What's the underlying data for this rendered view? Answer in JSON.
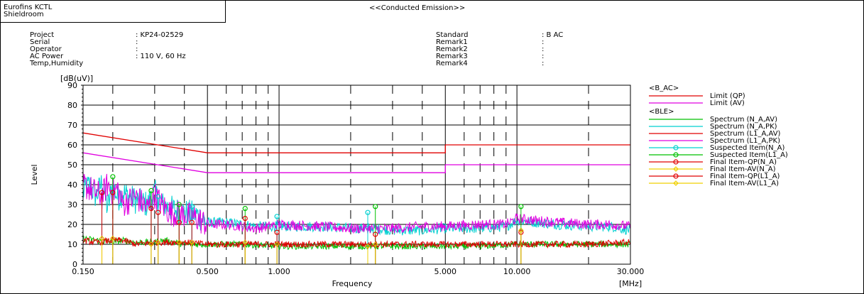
{
  "header": {
    "lab_line1": "Eurofins KCTL",
    "lab_line2": "Shieldroom",
    "title": "<<Conducted Emission>>"
  },
  "info_left": [
    {
      "label": "Project",
      "value": ": KP24-02529"
    },
    {
      "label": "Serial",
      "value": ":"
    },
    {
      "label": "Operator",
      "value": ":"
    },
    {
      "label": "AC Power",
      "value": ": 110 V, 60 Hz"
    },
    {
      "label": "Temp,Humidity",
      "value": ""
    }
  ],
  "info_right": [
    {
      "label": "Standard",
      "value": ": B AC"
    },
    {
      "label": "Remark1",
      "value": ":"
    },
    {
      "label": "Remark2",
      "value": ":"
    },
    {
      "label": "Remark3",
      "value": ":"
    },
    {
      "label": "Remark4",
      "value": ":"
    }
  ],
  "chart_data": {
    "type": "line",
    "ylabel": "Level",
    "yunit": "[dB(uV)]",
    "xlabel": "Frequency",
    "xunit": "[MHz]",
    "x_scale": "log",
    "xlim": [
      0.15,
      30
    ],
    "ylim": [
      0,
      90
    ],
    "y_ticks": [
      0,
      10,
      20,
      30,
      40,
      50,
      60,
      70,
      80,
      90
    ],
    "x_ticks": [
      {
        "value": 0.15,
        "label": "0.150"
      },
      {
        "value": 0.5,
        "label": "0.500"
      },
      {
        "value": 1,
        "label": "1.000"
      },
      {
        "value": 5,
        "label": "5.000"
      },
      {
        "value": 10,
        "label": "10.000"
      },
      {
        "value": 30,
        "label": "30.000"
      }
    ],
    "grid": true,
    "legend_position": "right",
    "legend_groups": [
      {
        "title": "<B_AC>",
        "items": [
          {
            "name": "Limit (QP)",
            "color": "#e00000",
            "marker": "none"
          },
          {
            "name": "Limit (AV)",
            "color": "#e000e0",
            "marker": "none"
          }
        ]
      },
      {
        "title": "<BLE>",
        "items": [
          {
            "name": "Spectrum (N_A,AV)",
            "color": "#00c000",
            "marker": "none"
          },
          {
            "name": "Spectrum (N_A,PK)",
            "color": "#00d0d0",
            "marker": "none"
          },
          {
            "name": "Spectrum (L1_A,AV)",
            "color": "#e00000",
            "marker": "none"
          },
          {
            "name": "Spectrum (L1_A,PK)",
            "color": "#e000e0",
            "marker": "none"
          },
          {
            "name": "Suspected Item(N_A)",
            "color": "#00d0d0",
            "marker": "circle"
          },
          {
            "name": "Suspected Item(L1_A)",
            "color": "#00c000",
            "marker": "circle"
          },
          {
            "name": "Final Item-QP(N_A)",
            "color": "#e00000",
            "marker": "circle"
          },
          {
            "name": "Final Item-AV(N_A)",
            "color": "#f0d000",
            "marker": "diamond"
          },
          {
            "name": "Final Item-QP(L1_A)",
            "color": "#e00000",
            "marker": "circle"
          },
          {
            "name": "Final Item-AV(L1_A)",
            "color": "#f0d000",
            "marker": "diamond"
          }
        ]
      }
    ],
    "limits": [
      {
        "name": "Limit (QP)",
        "color": "#e00000",
        "segments": [
          {
            "x": [
              0.15,
              0.5
            ],
            "y": [
              66,
              56
            ]
          },
          {
            "x": [
              0.5,
              5
            ],
            "y": [
              56,
              56
            ]
          },
          {
            "x": [
              5,
              30
            ],
            "y": [
              60,
              60
            ]
          }
        ]
      },
      {
        "name": "Limit (AV)",
        "color": "#e000e0",
        "segments": [
          {
            "x": [
              0.15,
              0.5
            ],
            "y": [
              56,
              46
            ]
          },
          {
            "x": [
              0.5,
              5
            ],
            "y": [
              46,
              46
            ]
          },
          {
            "x": [
              5,
              30
            ],
            "y": [
              50,
              50
            ]
          }
        ]
      }
    ],
    "spectra": [
      {
        "name": "Spectrum (N_A,PK)",
        "color": "#00d0d0",
        "x": [
          0.15,
          0.16,
          0.17,
          0.18,
          0.19,
          0.2,
          0.21,
          0.22,
          0.25,
          0.28,
          0.3,
          0.32,
          0.35,
          0.4,
          0.45,
          0.5,
          0.6,
          0.7,
          0.8,
          1.0,
          1.5,
          2.0,
          2.5,
          3.0,
          4.0,
          5.0,
          7.0,
          9.0,
          10.0,
          12.0,
          15.0,
          20.0,
          25.0,
          30.0
        ],
        "y": [
          36,
          40,
          34,
          41,
          28,
          40,
          33,
          36,
          32,
          30,
          36,
          30,
          28,
          26,
          25,
          21,
          21,
          20,
          19,
          19,
          19,
          18,
          18,
          17,
          17,
          18,
          18,
          19,
          22,
          21,
          20,
          19,
          19,
          17
        ]
      },
      {
        "name": "Spectrum (L1_A,PK)",
        "color": "#e000e0",
        "x": [
          0.15,
          0.16,
          0.17,
          0.18,
          0.19,
          0.2,
          0.21,
          0.22,
          0.25,
          0.28,
          0.3,
          0.32,
          0.35,
          0.4,
          0.45,
          0.5,
          0.6,
          0.7,
          0.8,
          1.0,
          1.5,
          2.0,
          2.5,
          3.0,
          4.0,
          5.0,
          7.0,
          9.0,
          10.0,
          12.0,
          15.0,
          20.0,
          25.0,
          30.0
        ],
        "y": [
          40,
          38,
          36,
          34,
          40,
          36,
          38,
          30,
          34,
          28,
          35,
          30,
          26,
          25,
          23,
          20,
          20,
          19,
          18,
          20,
          19,
          18,
          18,
          18,
          19,
          19,
          20,
          20,
          23,
          22,
          21,
          20,
          20,
          19
        ]
      },
      {
        "name": "Spectrum (N_A,AV)",
        "color": "#00c000",
        "x": [
          0.15,
          0.17,
          0.2,
          0.22,
          0.25,
          0.3,
          0.33,
          0.4,
          0.5,
          0.6,
          0.7,
          1.0,
          1.5,
          2.0,
          3.0,
          5.0,
          7.0,
          10.0,
          12.0,
          15.0,
          20.0,
          30.0
        ],
        "y": [
          13,
          12,
          11,
          12,
          11,
          11,
          12,
          10,
          10,
          10,
          10,
          9,
          9,
          9,
          9,
          9,
          9,
          10,
          10,
          10,
          10,
          10
        ]
      },
      {
        "name": "Spectrum (L1_A,AV)",
        "color": "#e00000",
        "x": [
          0.15,
          0.17,
          0.2,
          0.22,
          0.25,
          0.3,
          0.33,
          0.4,
          0.5,
          0.6,
          0.7,
          1.0,
          1.5,
          2.0,
          3.0,
          5.0,
          7.0,
          10.0,
          12.0,
          15.0,
          20.0,
          30.0
        ],
        "y": [
          12,
          11,
          12,
          12,
          10,
          11,
          11,
          11,
          10,
          10,
          10,
          10,
          10,
          10,
          10,
          10,
          10,
          10,
          10,
          10,
          10,
          11
        ]
      }
    ],
    "suspected_points": [
      {
        "x": 0.2,
        "y": 44,
        "color": "#00c000"
      },
      {
        "x": 0.29,
        "y": 37,
        "color": "#00c000"
      },
      {
        "x": 0.31,
        "y": 34,
        "color": "#00d0d0"
      },
      {
        "x": 0.38,
        "y": 30,
        "color": "#00c000"
      },
      {
        "x": 0.43,
        "y": 29,
        "color": "#00d0d0"
      },
      {
        "x": 0.72,
        "y": 28,
        "color": "#00c000"
      },
      {
        "x": 0.98,
        "y": 24,
        "color": "#00d0d0"
      },
      {
        "x": 2.36,
        "y": 26,
        "color": "#00d0d0"
      },
      {
        "x": 2.54,
        "y": 29,
        "color": "#00c000"
      },
      {
        "x": 10.4,
        "y": 29,
        "color": "#00c000"
      }
    ],
    "final_qp_points": [
      {
        "x": 0.18,
        "y": 36
      },
      {
        "x": 0.2,
        "y": 36
      },
      {
        "x": 0.29,
        "y": 28
      },
      {
        "x": 0.31,
        "y": 26
      },
      {
        "x": 0.38,
        "y": 21
      },
      {
        "x": 0.43,
        "y": 21
      },
      {
        "x": 0.72,
        "y": 23
      },
      {
        "x": 0.98,
        "y": 16
      },
      {
        "x": 2.54,
        "y": 15
      },
      {
        "x": 10.4,
        "y": 16
      }
    ],
    "final_av_points": [
      {
        "x": 0.18,
        "y": 13
      },
      {
        "x": 0.2,
        "y": 13
      },
      {
        "x": 0.29,
        "y": 10
      },
      {
        "x": 0.31,
        "y": 11
      },
      {
        "x": 0.38,
        "y": 11
      },
      {
        "x": 0.43,
        "y": 11
      },
      {
        "x": 0.72,
        "y": 11
      },
      {
        "x": 0.98,
        "y": 10
      },
      {
        "x": 2.36,
        "y": 9
      },
      {
        "x": 2.54,
        "y": 10
      },
      {
        "x": 10.4,
        "y": 17
      }
    ]
  }
}
